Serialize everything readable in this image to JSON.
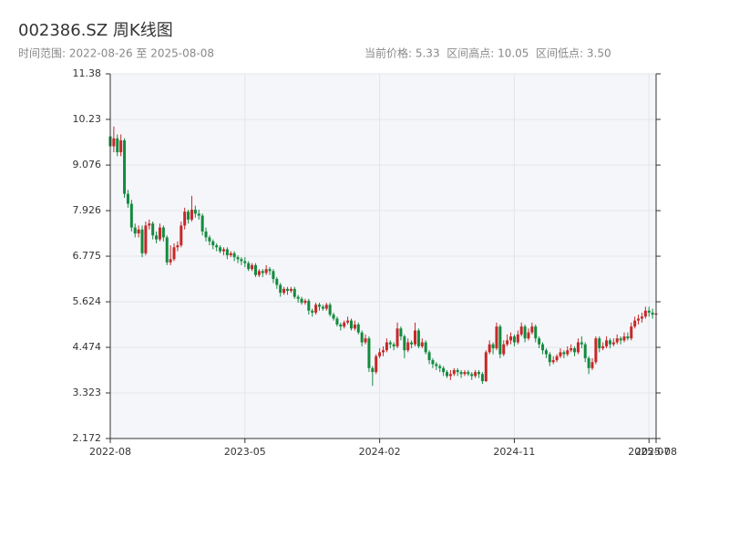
{
  "chart_data": {
    "type": "candlestick",
    "title": "002386.SZ 周K线图",
    "subtitle_left": "时间范围: 2022-08-26 至 2025-08-08",
    "subtitle_right": "当前价格: 5.33  区间高点: 10.05  区间低点: 3.50",
    "up_color": "#c62828",
    "down_color": "#138a3e",
    "grid": true,
    "ylim": [
      2.172,
      11.38
    ],
    "yticks": [
      2.172,
      3.323,
      4.474,
      5.624,
      6.775,
      7.926,
      9.076,
      10.23,
      11.38
    ],
    "xlim": [
      "2022-08-26",
      "2025-08-08"
    ],
    "xticks": [
      {
        "value": "2022-08-26",
        "label": "2022-08"
      },
      {
        "value": "2023-05-19",
        "label": "2023-05"
      },
      {
        "value": "2024-02-09",
        "label": "2024-02"
      },
      {
        "value": "2024-11-01",
        "label": "2024-11"
      },
      {
        "value": "2025-07-25",
        "label": "2025-07"
      },
      {
        "value": "2025-08-08",
        "label": "2025-08"
      }
    ],
    "x": [
      "2022-08-26",
      "2022-09-02",
      "2022-09-09",
      "2022-09-16",
      "2022-09-23",
      "2022-09-30",
      "2022-10-07",
      "2022-10-14",
      "2022-10-21",
      "2022-10-28",
      "2022-11-04",
      "2022-11-11",
      "2022-11-18",
      "2022-11-25",
      "2022-12-02",
      "2022-12-09",
      "2022-12-16",
      "2022-12-23",
      "2022-12-30",
      "2023-01-06",
      "2023-01-13",
      "2023-01-20",
      "2023-01-27",
      "2023-02-03",
      "2023-02-10",
      "2023-02-17",
      "2023-02-24",
      "2023-03-03",
      "2023-03-10",
      "2023-03-17",
      "2023-03-24",
      "2023-03-31",
      "2023-04-07",
      "2023-04-14",
      "2023-04-21",
      "2023-04-28",
      "2023-05-05",
      "2023-05-12",
      "2023-05-19",
      "2023-05-26",
      "2023-06-02",
      "2023-06-09",
      "2023-06-16",
      "2023-06-23",
      "2023-06-30",
      "2023-07-07",
      "2023-07-14",
      "2023-07-21",
      "2023-07-28",
      "2023-08-04",
      "2023-08-11",
      "2023-08-18",
      "2023-08-25",
      "2023-09-01",
      "2023-09-08",
      "2023-09-15",
      "2023-09-22",
      "2023-09-29",
      "2023-10-06",
      "2023-10-13",
      "2023-10-20",
      "2023-10-27",
      "2023-11-03",
      "2023-11-10",
      "2023-11-17",
      "2023-11-24",
      "2023-12-01",
      "2023-12-08",
      "2023-12-15",
      "2023-12-22",
      "2023-12-29",
      "2024-01-05",
      "2024-01-12",
      "2024-01-19",
      "2024-01-26",
      "2024-02-02",
      "2024-02-09",
      "2024-02-16",
      "2024-02-23",
      "2024-03-01",
      "2024-03-08",
      "2024-03-15",
      "2024-03-22",
      "2024-03-29",
      "2024-04-05",
      "2024-04-12",
      "2024-04-19",
      "2024-04-26",
      "2024-05-03",
      "2024-05-10",
      "2024-05-17",
      "2024-05-24",
      "2024-05-31",
      "2024-06-07",
      "2024-06-14",
      "2024-06-21",
      "2024-06-28",
      "2024-07-05",
      "2024-07-12",
      "2024-07-19",
      "2024-07-26",
      "2024-08-02",
      "2024-08-09",
      "2024-08-16",
      "2024-08-23",
      "2024-08-30",
      "2024-09-06",
      "2024-09-13",
      "2024-09-20",
      "2024-09-27",
      "2024-10-04",
      "2024-10-11",
      "2024-10-18",
      "2024-10-25",
      "2024-11-01",
      "2024-11-08",
      "2024-11-15",
      "2024-11-22",
      "2024-11-29",
      "2024-12-06",
      "2024-12-13",
      "2024-12-20",
      "2024-12-27",
      "2025-01-03",
      "2025-01-10",
      "2025-01-17",
      "2025-01-24",
      "2025-01-31",
      "2025-02-07",
      "2025-02-14",
      "2025-02-21",
      "2025-02-28",
      "2025-03-07",
      "2025-03-14",
      "2025-03-21",
      "2025-03-28",
      "2025-04-04",
      "2025-04-11",
      "2025-04-18",
      "2025-04-25",
      "2025-05-02",
      "2025-05-09",
      "2025-05-16",
      "2025-05-23",
      "2025-05-30",
      "2025-06-06",
      "2025-06-13",
      "2025-06-20",
      "2025-06-27",
      "2025-07-04",
      "2025-07-11",
      "2025-07-18",
      "2025-07-25",
      "2025-08-01",
      "2025-08-08"
    ],
    "open": [
      9.8,
      9.55,
      9.75,
      9.4,
      9.7,
      8.35,
      8.1,
      7.5,
      7.35,
      7.45,
      6.85,
      7.55,
      7.6,
      7.3,
      7.2,
      7.5,
      7.25,
      6.62,
      6.7,
      7,
      7.05,
      7.55,
      7.9,
      7.7,
      7.95,
      7.85,
      7.8,
      7.4,
      7.25,
      7.15,
      7.05,
      7,
      6.9,
      6.95,
      6.8,
      6.85,
      6.75,
      6.7,
      6.65,
      6.6,
      6.45,
      6.55,
      6.3,
      6.4,
      6.35,
      6.45,
      6.4,
      6.2,
      6.05,
      5.85,
      5.95,
      5.9,
      5.95,
      5.75,
      5.7,
      5.6,
      5.65,
      5.4,
      5.35,
      5.55,
      5.5,
      5.45,
      5.55,
      5.3,
      5.2,
      5.05,
      5,
      5.1,
      5.15,
      4.95,
      5.05,
      4.85,
      4.6,
      4.7,
      3.95,
      3.85,
      4.25,
      4.35,
      4.4,
      4.6,
      4.55,
      4.5,
      4.95,
      4.75,
      4.4,
      4.6,
      4.55,
      4.9,
      4.5,
      4.6,
      4.35,
      4.15,
      4.05,
      4,
      3.95,
      3.85,
      3.75,
      3.8,
      3.9,
      3.85,
      3.8,
      3.85,
      3.8,
      3.75,
      3.85,
      3.8,
      3.62,
      4.35,
      4.55,
      4.45,
      5,
      4.3,
      4.55,
      4.65,
      4.75,
      4.6,
      4.8,
      5,
      4.7,
      4.85,
      5,
      4.7,
      4.55,
      4.4,
      4.3,
      4.1,
      4.15,
      4.25,
      4.35,
      4.3,
      4.4,
      4.45,
      4.35,
      4.6,
      4.55,
      4.2,
      3.95,
      4.1,
      4.7,
      4.45,
      4.5,
      4.65,
      4.55,
      4.6,
      4.7,
      4.65,
      4.75,
      4.7,
      5,
      5.15,
      5.2,
      5.25,
      5.4,
      5.35,
      5.3
    ],
    "high": [
      9.9,
      10.05,
      9.85,
      9.85,
      9.75,
      8.45,
      8.2,
      7.6,
      7.55,
      7.55,
      7.65,
      7.7,
      7.65,
      7.4,
      7.6,
      7.55,
      7.3,
      7.05,
      7.1,
      7.15,
      7.65,
      8,
      7.95,
      8.3,
      8.05,
      7.95,
      7.85,
      7.5,
      7.3,
      7.2,
      7.1,
      7.05,
      7,
      7,
      6.9,
      6.9,
      6.8,
      6.75,
      6.75,
      6.65,
      6.6,
      6.6,
      6.45,
      6.45,
      6.55,
      6.5,
      6.45,
      6.25,
      6.1,
      6,
      6,
      6,
      6,
      5.8,
      5.75,
      5.7,
      5.7,
      5.45,
      5.6,
      5.6,
      5.55,
      5.6,
      5.6,
      5.35,
      5.25,
      5.1,
      5.15,
      5.25,
      5.2,
      5.15,
      5.1,
      4.9,
      4.8,
      4.75,
      4,
      4.3,
      4.45,
      4.5,
      4.7,
      4.65,
      4.6,
      5.1,
      5,
      4.8,
      4.7,
      4.65,
      5.1,
      4.95,
      4.7,
      4.65,
      4.4,
      4.2,
      4.1,
      4.05,
      4,
      3.9,
      3.9,
      3.95,
      3.95,
      3.9,
      3.9,
      3.9,
      3.85,
      3.9,
      3.9,
      3.85,
      4.4,
      4.65,
      4.6,
      5.1,
      5.05,
      4.65,
      4.8,
      4.85,
      4.8,
      4.9,
      5.1,
      5.05,
      4.95,
      5.1,
      5.05,
      4.75,
      4.6,
      4.45,
      4.35,
      4.25,
      4.3,
      4.45,
      4.4,
      4.5,
      4.55,
      4.5,
      4.7,
      4.75,
      4.6,
      4.25,
      4.2,
      4.75,
      4.75,
      4.6,
      4.75,
      4.7,
      4.7,
      4.8,
      4.75,
      4.85,
      4.85,
      5.1,
      5.25,
      5.3,
      5.35,
      5.5,
      5.5,
      5.45,
      5.45
    ],
    "low": [
      9.45,
      9.4,
      9.3,
      9.3,
      8.25,
      8,
      7.4,
      7.25,
      7.25,
      6.75,
      6.8,
      7.45,
      7.2,
      7.1,
      7.15,
      7.15,
      6.55,
      6.55,
      6.65,
      6.9,
      7,
      7.45,
      7.6,
      7.65,
      7.75,
      7.7,
      7.3,
      7.15,
      7.05,
      6.95,
      6.9,
      6.85,
      6.8,
      6.7,
      6.75,
      6.65,
      6.6,
      6.55,
      6.5,
      6.4,
      6.4,
      6.25,
      6.25,
      6.25,
      6.3,
      6.3,
      6.1,
      5.95,
      5.75,
      5.8,
      5.8,
      5.85,
      5.7,
      5.6,
      5.55,
      5.55,
      5.3,
      5.25,
      5.3,
      5.4,
      5.4,
      5.4,
      5.25,
      5.15,
      5,
      4.9,
      4.95,
      5.05,
      4.9,
      4.9,
      4.8,
      4.5,
      4.55,
      3.85,
      3.5,
      3.8,
      4.2,
      4.25,
      4.35,
      4.45,
      4.4,
      4.45,
      4.65,
      4.2,
      4.35,
      4.45,
      4.5,
      4.45,
      4.45,
      4.3,
      4.05,
      3.95,
      3.9,
      3.85,
      3.75,
      3.7,
      3.65,
      3.75,
      3.75,
      3.7,
      3.75,
      3.75,
      3.65,
      3.7,
      3.7,
      3.55,
      3.6,
      4.3,
      4.3,
      4.4,
      4.2,
      4.25,
      4.5,
      4.55,
      4.5,
      4.55,
      4.75,
      4.6,
      4.65,
      4.8,
      4.6,
      4.45,
      4.3,
      4.2,
      4,
      4.05,
      4.1,
      4.2,
      4.2,
      4.25,
      4.35,
      4.25,
      4.3,
      4.45,
      4.1,
      3.8,
      3.9,
      4.05,
      4.35,
      4.4,
      4.45,
      4.45,
      4.5,
      4.55,
      4.55,
      4.6,
      4.65,
      4.65,
      4.95,
      5.05,
      5.1,
      5.2,
      5.25,
      5.2,
      5.1
    ],
    "close": [
      9.55,
      9.75,
      9.4,
      9.7,
      8.35,
      8.1,
      7.5,
      7.35,
      7.45,
      6.85,
      7.55,
      7.6,
      7.3,
      7.2,
      7.5,
      7.25,
      6.62,
      6.7,
      7,
      7.05,
      7.55,
      7.9,
      7.7,
      7.95,
      7.85,
      7.8,
      7.4,
      7.25,
      7.15,
      7.05,
      7,
      6.9,
      6.95,
      6.8,
      6.85,
      6.75,
      6.7,
      6.65,
      6.6,
      6.45,
      6.55,
      6.3,
      6.4,
      6.35,
      6.45,
      6.4,
      6.2,
      6.05,
      5.85,
      5.95,
      5.9,
      5.95,
      5.75,
      5.7,
      5.6,
      5.65,
      5.4,
      5.35,
      5.55,
      5.5,
      5.45,
      5.55,
      5.3,
      5.2,
      5.05,
      5,
      5.1,
      5.15,
      4.95,
      5.05,
      4.85,
      4.6,
      4.7,
      3.95,
      3.85,
      4.25,
      4.35,
      4.4,
      4.6,
      4.55,
      4.5,
      4.95,
      4.75,
      4.4,
      4.6,
      4.55,
      4.9,
      4.5,
      4.6,
      4.35,
      4.15,
      4.05,
      4,
      3.95,
      3.85,
      3.75,
      3.8,
      3.9,
      3.85,
      3.8,
      3.85,
      3.8,
      3.75,
      3.85,
      3.8,
      3.62,
      4.35,
      4.55,
      4.45,
      5,
      4.3,
      4.55,
      4.65,
      4.75,
      4.6,
      4.8,
      5,
      4.7,
      4.85,
      5,
      4.7,
      4.55,
      4.4,
      4.3,
      4.1,
      4.15,
      4.25,
      4.35,
      4.3,
      4.4,
      4.45,
      4.35,
      4.6,
      4.55,
      4.2,
      3.95,
      4.1,
      4.7,
      4.45,
      4.5,
      4.65,
      4.55,
      4.6,
      4.7,
      4.65,
      4.75,
      4.7,
      5,
      5.15,
      5.2,
      5.25,
      5.4,
      5.35,
      5.3,
      5.33
    ]
  }
}
